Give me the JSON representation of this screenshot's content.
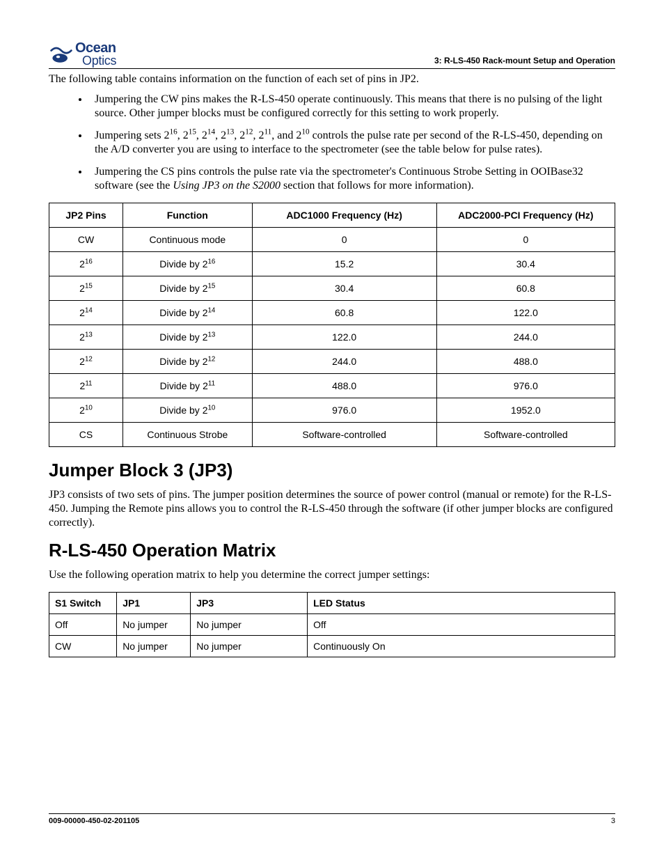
{
  "header": {
    "logo_top": "Ocean",
    "logo_bot": "Optics",
    "right": "3: R-LS-450 Rack-mount Setup and Operation"
  },
  "intro": "The following table contains information on the function of each set of pins in JP2.",
  "bullets": [
    {
      "plain": "Jumpering the CW pins makes the R-LS-450 operate continuously. This means that there is no pulsing of the light source. Other jumper blocks must be configured correctly for this setting to work properly."
    },
    {
      "pre": "Jumpering sets 2",
      "sups": [
        "16",
        "15",
        "14",
        "13",
        "12",
        "11",
        "10"
      ],
      "joiner": ", 2",
      "last_joiner": ", and 2",
      "post": " controls the pulse rate per second of the R-LS-450, depending on the A/D converter you are using to interface to the spectrometer (see the table below for pulse rates)."
    },
    {
      "plain_pre": "Jumpering the CS pins controls the pulse rate via the spectrometer's Continuous Strobe Setting in OOIBase32 software (see the ",
      "italic": "Using JP3 on the S2000",
      "plain_post": " section that follows for more information)."
    }
  ],
  "table1": {
    "headers": [
      "JP2 Pins",
      "Function",
      "ADC1000 Frequency (Hz)",
      "ADC2000-PCI Frequency (Hz)"
    ],
    "rows": [
      {
        "pin": "CW",
        "pin_sup": "",
        "func": "Continuous mode",
        "func_sup": "",
        "f1": "0",
        "f2": "0"
      },
      {
        "pin": "2",
        "pin_sup": "16",
        "func": "Divide by 2",
        "func_sup": "16",
        "f1": "15.2",
        "f2": "30.4"
      },
      {
        "pin": "2",
        "pin_sup": "15",
        "func": "Divide by 2",
        "func_sup": "15",
        "f1": "30.4",
        "f2": "60.8"
      },
      {
        "pin": "2",
        "pin_sup": "14",
        "func": "Divide by 2",
        "func_sup": "14",
        "f1": "60.8",
        "f2": "122.0"
      },
      {
        "pin": "2",
        "pin_sup": "13",
        "func": "Divide by 2",
        "func_sup": "13",
        "f1": "122.0",
        "f2": "244.0"
      },
      {
        "pin": "2",
        "pin_sup": "12",
        "func": "Divide by 2",
        "func_sup": "12",
        "f1": "244.0",
        "f2": "488.0"
      },
      {
        "pin": "2",
        "pin_sup": "11",
        "func": "Divide by 2",
        "func_sup": "11",
        "f1": "488.0",
        "f2": "976.0"
      },
      {
        "pin": "2",
        "pin_sup": "10",
        "func": "Divide by 2",
        "func_sup": "10",
        "f1": "976.0",
        "f2": "1952.0"
      },
      {
        "pin": "CS",
        "pin_sup": "",
        "func": "Continuous Strobe",
        "func_sup": "",
        "f1": "Software-controlled",
        "f2": "Software-controlled"
      }
    ]
  },
  "section_jp3": {
    "title": "Jumper Block 3 (JP3)",
    "body": "JP3 consists of two sets of pins. The jumper position determines the source of power control (manual or remote) for the R-LS-450. Jumping the Remote pins allows you to control the R-LS-450 through the software (if other jumper blocks are configured correctly)."
  },
  "section_matrix": {
    "title": "R-LS-450 Operation Matrix",
    "lead": "Use the following operation matrix to help you determine the correct jumper settings:"
  },
  "table2": {
    "headers": [
      "S1 Switch",
      "JP1",
      "JP3",
      "LED Status"
    ],
    "rows": [
      [
        "Off",
        "No jumper",
        "No jumper",
        "Off"
      ],
      [
        "CW",
        "No jumper",
        "No jumper",
        "Continuously On"
      ]
    ]
  },
  "footer": {
    "doc": "009-00000-450-02-201105",
    "page": "3"
  },
  "style": {
    "body_font": "Times New Roman",
    "sans_font": "Arial",
    "heading_fontsize_pt": 20,
    "body_fontsize_pt": 12,
    "table_fontsize_pt": 10.5,
    "footer_fontsize_pt": 8,
    "text_color": "#000000",
    "logo_color": "#1a3a7a",
    "rule_color": "#000000",
    "background": "#ffffff",
    "table1_col_widths_pct": [
      12,
      21,
      30,
      29
    ],
    "table2_col_widths_pct": [
      11,
      12,
      19,
      50
    ]
  }
}
